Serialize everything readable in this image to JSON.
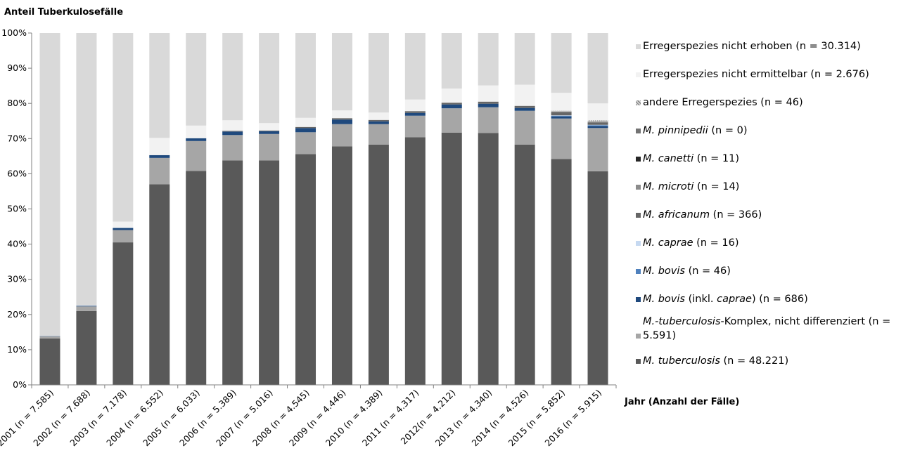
{
  "chart_data": {
    "type": "bar",
    "stacked": true,
    "ylabel": "Anteil Tuberkulosefälle",
    "xlabel": "Jahr (Anzahl der Fälle)",
    "ylim": [
      0,
      100
    ],
    "yticks": [
      "0%",
      "10%",
      "20%",
      "30%",
      "40%",
      "50%",
      "60%",
      "70%",
      "80%",
      "90%",
      "100%"
    ],
    "grid": false,
    "legend_position": "right",
    "categories": [
      "2001 (n = 7.585)",
      "2002 (n = 7.688)",
      "2003 (n = 7.178)",
      "2004 (n = 6.552)",
      "2005 (n = 6.033)",
      "2006 (n = 5.389)",
      "2007 (n = 5.016)",
      "2008 (n = 4.545)",
      "2009 (n = 4.446)",
      "2010 (n = 4.389)",
      "2011 (n = 4.317)",
      "2012(n = 4.212)",
      "2013 (n = 4.340)",
      "2014 (n = 4.526)",
      "2015 (n = 5.852)",
      "2016 (n = 5.915)"
    ],
    "series": [
      {
        "key": "tb",
        "italic": "M. tuberculosis",
        "plain": " (n = 48.221)",
        "color": "#595959",
        "values": [
          13.2,
          21.0,
          40.5,
          57.0,
          60.8,
          63.8,
          63.8,
          65.6,
          67.8,
          68.3,
          70.4,
          71.7,
          71.6,
          68.3,
          64.2,
          60.7
        ]
      },
      {
        "key": "mtbc",
        "parts": [
          [
            "",
            "M.-tuberculosis"
          ],
          [
            "-Komplex, nicht differenziert (n = 5.591)",
            ""
          ]
        ],
        "text": "M.-tuberculosis-Komplex, nicht differenziert (n = 5.591)",
        "color": "#a6a6a6",
        "values": [
          0.6,
          1.3,
          3.5,
          7.5,
          8.5,
          7.2,
          7.5,
          6.2,
          6.3,
          5.8,
          6.1,
          6.9,
          7.3,
          9.6,
          11.5,
          12.3
        ]
      },
      {
        "key": "bovis_caprae",
        "text": "M. bovis (inkl. caprae) (n = 686)",
        "color": "#1f497d",
        "values": [
          0.1,
          0.2,
          0.6,
          0.8,
          0.8,
          1.0,
          0.8,
          1.2,
          1.3,
          0.8,
          0.8,
          1.1,
          1.0,
          0.8,
          0.6,
          0.6
        ]
      },
      {
        "key": "bovis",
        "italic": "M. bovis",
        "plain": " (n = 46)",
        "color": "#4f81bd",
        "values": [
          0,
          0,
          0,
          0,
          0,
          0,
          0,
          0,
          0,
          0,
          0,
          0,
          0,
          0,
          0.2,
          0.2
        ]
      },
      {
        "key": "caprae",
        "italic": "M. caprae",
        "plain": " (n = 16)",
        "color": "#c6d9f1",
        "values": [
          0,
          0,
          0,
          0,
          0,
          0,
          0,
          0,
          0,
          0,
          0,
          0,
          0,
          0,
          0.1,
          0.1
        ]
      },
      {
        "key": "africanum",
        "italic": "M. africanum",
        "plain": " (n = 366)",
        "color": "#666666",
        "values": [
          0,
          0,
          0,
          0,
          0,
          0.2,
          0.2,
          0.3,
          0.4,
          0.4,
          0.5,
          0.5,
          0.6,
          0.6,
          0.9,
          0.7
        ]
      },
      {
        "key": "microti",
        "italic": "M. microti",
        "plain": " (n = 14)",
        "color": "#8c8c8c",
        "values": [
          0,
          0,
          0,
          0,
          0,
          0,
          0,
          0,
          0,
          0,
          0,
          0,
          0,
          0,
          0.1,
          0.1
        ]
      },
      {
        "key": "canetti",
        "italic": "M. canetti",
        "plain": " (n = 11)",
        "color": "#262626",
        "values": [
          0,
          0,
          0,
          0,
          0,
          0,
          0,
          0,
          0,
          0,
          0,
          0,
          0,
          0,
          0.1,
          0.1
        ]
      },
      {
        "key": "pinnipedii",
        "italic": "M. pinnipedii",
        "plain": " (n = 0)",
        "color": "#737373",
        "values": [
          0,
          0,
          0,
          0,
          0,
          0,
          0,
          0,
          0,
          0,
          0,
          0,
          0,
          0,
          0,
          0
        ]
      },
      {
        "key": "andere",
        "text": "andere Erregerspezies (n = 46)",
        "color": "#b3b3b3",
        "pattern": true,
        "values": [
          0,
          0,
          0,
          0,
          0,
          0,
          0,
          0,
          0,
          0,
          0,
          0,
          0,
          0,
          0.3,
          0.4
        ]
      },
      {
        "key": "nicht_ermittelbar",
        "text": "Erregerspezies nicht ermittelbar (n = 2.676)",
        "color": "#f2f2f2",
        "values": [
          0.1,
          0.2,
          1.8,
          4.9,
          3.6,
          3.0,
          2.1,
          2.6,
          2.2,
          2.1,
          3.3,
          4.0,
          4.6,
          6.0,
          5.0,
          4.8
        ]
      },
      {
        "key": "nicht_erhoben",
        "text": "Erregerspezies nicht erhoben (n = 30.314)",
        "color": "#d9d9d9",
        "values": [
          86.0,
          77.3,
          53.6,
          29.8,
          26.3,
          24.8,
          25.6,
          24.1,
          22.0,
          22.6,
          18.9,
          15.8,
          14.9,
          14.7,
          17.0,
          20.0
        ]
      }
    ]
  },
  "legend": [
    {
      "name": "legend-nicht-erhoben",
      "color": "#d9d9d9",
      "parts": [
        {
          "t": "Erregerspezies nicht erhoben (n = 30.314)",
          "i": false
        }
      ]
    },
    {
      "name": "legend-nicht-ermittelbar",
      "color": "#f2f2f2",
      "parts": [
        {
          "t": "Erregerspezies nicht ermittelbar (n = 2.676)",
          "i": false
        }
      ]
    },
    {
      "name": "legend-andere",
      "color": "#b3b3b3",
      "pattern": true,
      "parts": [
        {
          "t": "andere Erregerspezies (n = 46)",
          "i": false
        }
      ]
    },
    {
      "name": "legend-pinnipedii",
      "color": "#737373",
      "parts": [
        {
          "t": "M. pinnipedii",
          "i": true
        },
        {
          "t": " (n = 0)",
          "i": false
        }
      ]
    },
    {
      "name": "legend-canetti",
      "color": "#262626",
      "parts": [
        {
          "t": "M. canetti",
          "i": true
        },
        {
          "t": " (n = 11)",
          "i": false
        }
      ]
    },
    {
      "name": "legend-microti",
      "color": "#8c8c8c",
      "parts": [
        {
          "t": "M. microti",
          "i": true
        },
        {
          "t": " (n = 14)",
          "i": false
        }
      ]
    },
    {
      "name": "legend-africanum",
      "color": "#666666",
      "parts": [
        {
          "t": "M. africanum",
          "i": true
        },
        {
          "t": " (n = 366)",
          "i": false
        }
      ]
    },
    {
      "name": "legend-caprae",
      "color": "#c6d9f1",
      "parts": [
        {
          "t": "M. caprae",
          "i": true
        },
        {
          "t": " (n = 16)",
          "i": false
        }
      ]
    },
    {
      "name": "legend-bovis",
      "color": "#4f81bd",
      "parts": [
        {
          "t": "M. bovis",
          "i": true
        },
        {
          "t": " (n = 46)",
          "i": false
        }
      ]
    },
    {
      "name": "legend-bovis-caprae",
      "color": "#1f497d",
      "parts": [
        {
          "t": "M. bovis",
          "i": true
        },
        {
          "t": " (inkl. ",
          "i": false
        },
        {
          "t": "caprae",
          "i": true
        },
        {
          "t": ")  (n = 686)",
          "i": false
        }
      ]
    },
    {
      "name": "legend-mtbc",
      "color": "#a6a6a6",
      "parts": [
        {
          "t": "M.-tuberculosis",
          "i": true
        },
        {
          "t": "-Komplex, nicht differenziert (n = 5.591)",
          "i": false
        }
      ]
    },
    {
      "name": "legend-tuberculosis",
      "color": "#595959",
      "parts": [
        {
          "t": "M. tuberculosis",
          "i": true
        },
        {
          "t": " (n = 48.221)",
          "i": false
        }
      ]
    }
  ]
}
